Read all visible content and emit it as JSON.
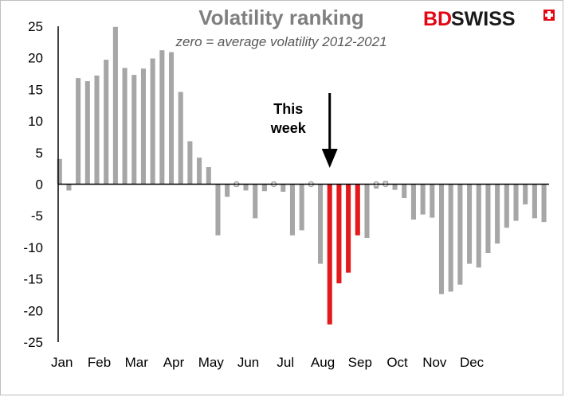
{
  "logo": {
    "bd": "BD",
    "swiss": "SWISS",
    "brand_color": "#e30613"
  },
  "chart_data": {
    "type": "bar",
    "title": "Volatility ranking",
    "subtitle": "zero = average volatility 2012-2021",
    "annotation": {
      "text_lines": [
        "This",
        "week"
      ],
      "points_to_week_index": 29
    },
    "ylim": [
      -25,
      25
    ],
    "yticks": [
      25,
      20,
      15,
      10,
      5,
      0,
      -5,
      -10,
      -15,
      -20,
      -25
    ],
    "month_labels": [
      "Jan",
      "Feb",
      "Mar",
      "Apr",
      "May",
      "Jun",
      "Jul",
      "Aug",
      "Sep",
      "Oct",
      "Nov",
      "Dec"
    ],
    "month_start_week_index": [
      0,
      4,
      8,
      12,
      16,
      20,
      24,
      28,
      32,
      36,
      40,
      44
    ],
    "grid": false,
    "legend": "none",
    "colors": {
      "default": "#a6a6a6",
      "highlight": "#e31a1c",
      "axis": "#000000"
    },
    "highlight_indices": [
      29,
      30,
      31,
      32
    ],
    "values": [
      4,
      -1,
      16.8,
      16.3,
      17.2,
      19.7,
      24.9,
      18.4,
      17.3,
      18.3,
      19.9,
      21.2,
      20.9,
      14.6,
      6.8,
      4.2,
      2.7,
      -8.1,
      -2,
      -0.4,
      -1,
      -5.4,
      -1.1,
      -0.3,
      -1.2,
      -8.1,
      -7.3,
      -0.3,
      -12.6,
      -22.2,
      -15.7,
      -14,
      -8.1,
      -8.5,
      -0.7,
      0.5,
      -0.9,
      -2.2,
      -5.6,
      -4.8,
      -5.3,
      -17.4,
      -17,
      -15.9,
      -12.6,
      -13.2,
      -10.9,
      -9.4,
      -6.9,
      -5.8,
      -3.2,
      -5.4,
      -6
    ]
  }
}
